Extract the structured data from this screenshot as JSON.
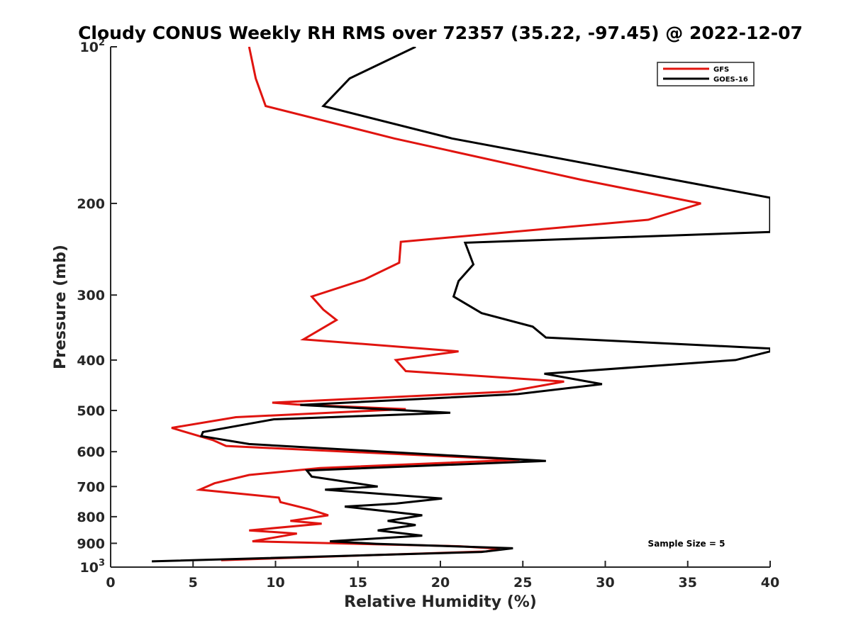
{
  "chart_data": {
    "type": "line",
    "title": "Cloudy CONUS Weekly RH RMS over 72357 (35.22, -97.45) @ 2022-12-07",
    "xlabel": "Relative Humidity (%)",
    "ylabel": "Pressure (mb)",
    "xlim": [
      0,
      40
    ],
    "ylim": [
      100,
      1000
    ],
    "y_scale": "log",
    "y_reversed": true,
    "grid": false,
    "legend_position": "top-right",
    "note": "Sample Size = 5",
    "x_ticks": [
      {
        "value": 0,
        "label": "0"
      },
      {
        "value": 5,
        "label": "5"
      },
      {
        "value": 10,
        "label": "10"
      },
      {
        "value": 15,
        "label": "15"
      },
      {
        "value": 20,
        "label": "20"
      },
      {
        "value": 25,
        "label": "25"
      },
      {
        "value": 30,
        "label": "30"
      },
      {
        "value": 35,
        "label": "35"
      },
      {
        "value": 40,
        "label": "40"
      }
    ],
    "y_ticks": [
      {
        "value": 100,
        "label": "10",
        "exp": "2"
      },
      {
        "value": 200,
        "label": "200"
      },
      {
        "value": 300,
        "label": "300"
      },
      {
        "value": 400,
        "label": "400"
      },
      {
        "value": 500,
        "label": "500"
      },
      {
        "value": 600,
        "label": "600"
      },
      {
        "value": 700,
        "label": "700"
      },
      {
        "value": 800,
        "label": "800"
      },
      {
        "value": 900,
        "label": "900"
      },
      {
        "value": 1000,
        "label": "10",
        "exp": "3"
      }
    ],
    "series": [
      {
        "name": "GFS",
        "color": "#e0140f",
        "points": [
          [
            8.4,
            100
          ],
          [
            8.8,
            115
          ],
          [
            9.4,
            130
          ],
          [
            17.2,
            150
          ],
          [
            28.5,
            180
          ],
          [
            35.8,
            200
          ],
          [
            32.6,
            215
          ],
          [
            17.6,
            237
          ],
          [
            17.5,
            260
          ],
          [
            15.4,
            280
          ],
          [
            12.2,
            302
          ],
          [
            12.9,
            320
          ],
          [
            13.7,
            335
          ],
          [
            11.7,
            365
          ],
          [
            21.1,
            385
          ],
          [
            17.3,
            400
          ],
          [
            17.9,
            420
          ],
          [
            27.5,
            440
          ],
          [
            24.1,
            460
          ],
          [
            9.8,
            483
          ],
          [
            11.3,
            487
          ],
          [
            17.9,
            497
          ],
          [
            7.6,
            515
          ],
          [
            3.7,
            540
          ],
          [
            6.2,
            570
          ],
          [
            7.0,
            585
          ],
          [
            24.8,
            622
          ],
          [
            12.7,
            645
          ],
          [
            8.4,
            665
          ],
          [
            6.3,
            690
          ],
          [
            5.4,
            710
          ],
          [
            10.2,
            735
          ],
          [
            10.3,
            750
          ],
          [
            12.1,
            775
          ],
          [
            13.2,
            795
          ],
          [
            10.9,
            815
          ],
          [
            12.8,
            825
          ],
          [
            8.4,
            850
          ],
          [
            11.3,
            862
          ],
          [
            8.6,
            892
          ],
          [
            21.2,
            912
          ],
          [
            23.6,
            922
          ],
          [
            22.8,
            933
          ],
          [
            15.1,
            950
          ],
          [
            6.7,
            970
          ]
        ]
      },
      {
        "name": "GOES-16",
        "color": "#000000",
        "points": [
          [
            18.5,
            100
          ],
          [
            14.5,
            115
          ],
          [
            12.9,
            130
          ],
          [
            20.7,
            150
          ],
          [
            40.0,
            195
          ],
          [
            40.0,
            227
          ],
          [
            21.5,
            238
          ],
          [
            22.0,
            262
          ],
          [
            21.1,
            282
          ],
          [
            20.8,
            302
          ],
          [
            22.5,
            325
          ],
          [
            25.6,
            345
          ],
          [
            26.4,
            362
          ],
          [
            40.0,
            380
          ],
          [
            40.0,
            385
          ],
          [
            37.9,
            400
          ],
          [
            26.3,
            425
          ],
          [
            29.8,
            445
          ],
          [
            24.7,
            465
          ],
          [
            11.5,
            488
          ],
          [
            20.6,
            505
          ],
          [
            9.9,
            520
          ],
          [
            5.6,
            550
          ],
          [
            5.5,
            560
          ],
          [
            8.4,
            580
          ],
          [
            26.4,
            625
          ],
          [
            11.9,
            652
          ],
          [
            12.2,
            670
          ],
          [
            16.2,
            700
          ],
          [
            13.0,
            710
          ],
          [
            20.1,
            738
          ],
          [
            17.3,
            755
          ],
          [
            14.2,
            765
          ],
          [
            18.9,
            795
          ],
          [
            16.8,
            815
          ],
          [
            18.5,
            830
          ],
          [
            16.2,
            850
          ],
          [
            18.9,
            870
          ],
          [
            13.3,
            892
          ],
          [
            16.1,
            902
          ],
          [
            24.4,
            920
          ],
          [
            22.5,
            935
          ],
          [
            2.5,
            975
          ]
        ]
      }
    ]
  }
}
